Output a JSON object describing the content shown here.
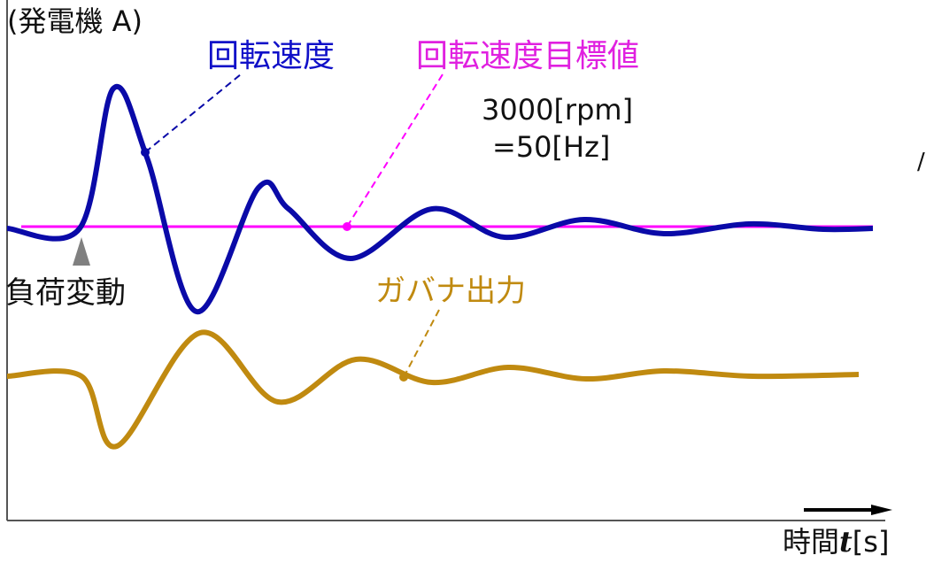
{
  "diagram": {
    "title": "(発電機 A)",
    "speed_label": "回転速度",
    "target_label": "回転速度目標値",
    "rpm_label": "3000[rpm]",
    "hz_label": "=50[Hz]",
    "load_change_label": "負荷変動",
    "governor_label": "ガバナ出力",
    "x_axis_label_prefix": "時間",
    "x_axis_variable": "t",
    "x_axis_unit": "[s]",
    "edge_mark": "/"
  },
  "colors": {
    "speed": "#0a0aa8",
    "target": "#ff00ff",
    "governor": "#c08a10",
    "axis": "#555555",
    "marker": "#808080"
  }
}
